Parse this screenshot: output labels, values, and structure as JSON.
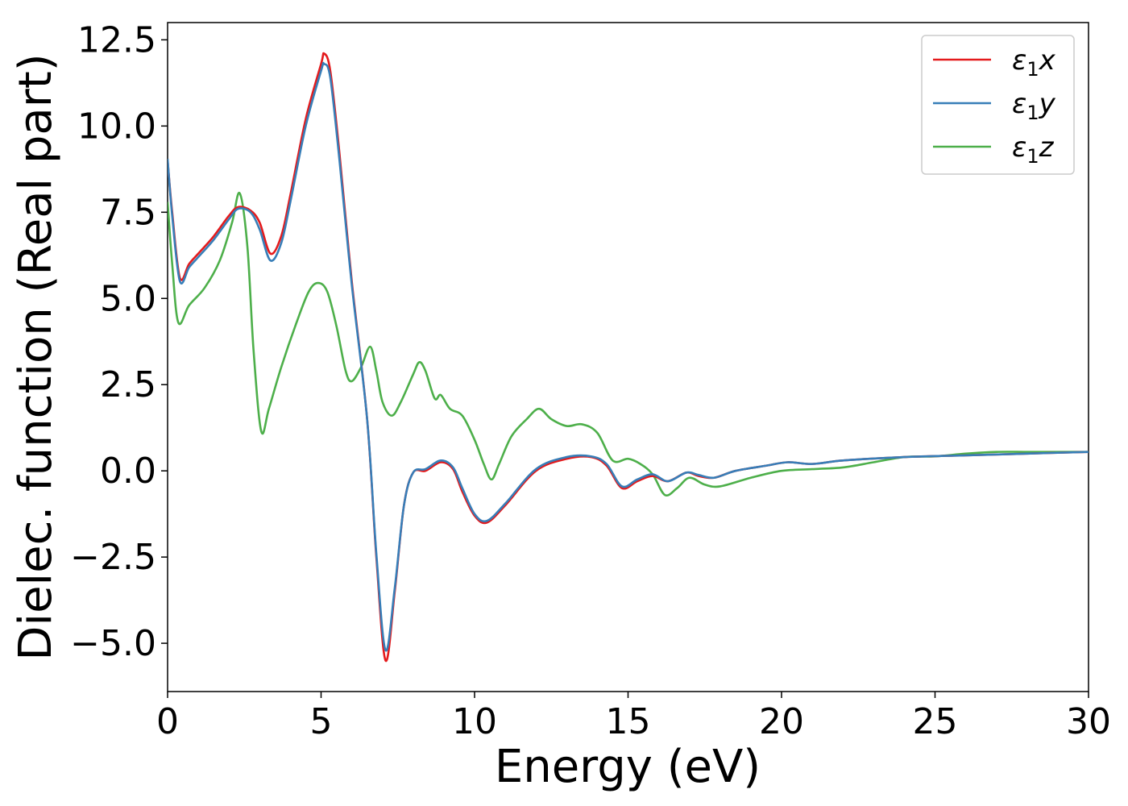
{
  "chart_data": {
    "type": "line",
    "title": "",
    "xlabel": "Energy (eV)",
    "ylabel": "Dielec. function (Real part)",
    "xlim": [
      0,
      30
    ],
    "ylim": [
      -6.4,
      13.0
    ],
    "xticks": [
      0,
      5,
      10,
      15,
      20,
      25,
      30
    ],
    "xtick_labels": [
      "0",
      "5",
      "10",
      "15",
      "20",
      "25",
      "30"
    ],
    "yticks": [
      -5.0,
      -2.5,
      0.0,
      2.5,
      5.0,
      7.5,
      10.0,
      12.5
    ],
    "ytick_labels": [
      "−5.0",
      "−2.5",
      "0.0",
      "2.5",
      "5.0",
      "7.5",
      "10.0",
      "12.5"
    ],
    "grid": false,
    "legend_position": "top-right",
    "series": [
      {
        "name": "ε₁x",
        "legend": {
          "base": "ε",
          "sub": "1",
          "suffix": "x"
        },
        "color": "#e41a1c",
        "points": [
          [
            0.0,
            9.0
          ],
          [
            0.15,
            7.5
          ],
          [
            0.4,
            5.6
          ],
          [
            0.7,
            6.0
          ],
          [
            1.0,
            6.3
          ],
          [
            1.5,
            6.8
          ],
          [
            2.0,
            7.4
          ],
          [
            2.3,
            7.65
          ],
          [
            2.7,
            7.55
          ],
          [
            3.0,
            7.2
          ],
          [
            3.35,
            6.3
          ],
          [
            3.7,
            6.8
          ],
          [
            4.0,
            8.0
          ],
          [
            4.5,
            10.2
          ],
          [
            5.0,
            11.8
          ],
          [
            5.1,
            12.1
          ],
          [
            5.3,
            11.6
          ],
          [
            5.6,
            9.2
          ],
          [
            6.0,
            5.5
          ],
          [
            6.5,
            1.5
          ],
          [
            6.8,
            -2.5
          ],
          [
            7.1,
            -5.5
          ],
          [
            7.4,
            -3.5
          ],
          [
            7.7,
            -1.0
          ],
          [
            8.0,
            -0.05
          ],
          [
            8.4,
            0.0
          ],
          [
            8.9,
            0.25
          ],
          [
            9.3,
            0.05
          ],
          [
            9.6,
            -0.6
          ],
          [
            10.0,
            -1.3
          ],
          [
            10.4,
            -1.5
          ],
          [
            11.0,
            -1.0
          ],
          [
            12.0,
            0.0
          ],
          [
            13.0,
            0.35
          ],
          [
            13.8,
            0.4
          ],
          [
            14.3,
            0.15
          ],
          [
            14.8,
            -0.5
          ],
          [
            15.3,
            -0.3
          ],
          [
            15.8,
            -0.15
          ],
          [
            16.3,
            -0.3
          ],
          [
            16.9,
            -0.05
          ],
          [
            17.3,
            -0.15
          ],
          [
            17.8,
            -0.2
          ],
          [
            18.5,
            0.0
          ],
          [
            19.5,
            0.15
          ],
          [
            20.2,
            0.25
          ],
          [
            21.0,
            0.2
          ],
          [
            22.0,
            0.3
          ],
          [
            24.0,
            0.4
          ],
          [
            26.0,
            0.45
          ],
          [
            28.0,
            0.5
          ],
          [
            30.0,
            0.55
          ]
        ]
      },
      {
        "name": "ε₁y",
        "legend": {
          "base": "ε",
          "sub": "1",
          "suffix": "y"
        },
        "color": "#377eb8",
        "points": [
          [
            0.0,
            9.05
          ],
          [
            0.15,
            7.4
          ],
          [
            0.4,
            5.5
          ],
          [
            0.7,
            5.9
          ],
          [
            1.0,
            6.2
          ],
          [
            1.5,
            6.7
          ],
          [
            2.0,
            7.3
          ],
          [
            2.3,
            7.6
          ],
          [
            2.7,
            7.5
          ],
          [
            3.0,
            7.0
          ],
          [
            3.35,
            6.1
          ],
          [
            3.7,
            6.6
          ],
          [
            4.0,
            7.8
          ],
          [
            4.5,
            10.0
          ],
          [
            5.0,
            11.6
          ],
          [
            5.1,
            11.8
          ],
          [
            5.3,
            11.4
          ],
          [
            5.6,
            9.0
          ],
          [
            6.0,
            5.4
          ],
          [
            6.5,
            1.5
          ],
          [
            6.8,
            -2.4
          ],
          [
            7.1,
            -5.2
          ],
          [
            7.4,
            -3.4
          ],
          [
            7.7,
            -1.0
          ],
          [
            8.0,
            -0.05
          ],
          [
            8.4,
            0.05
          ],
          [
            8.9,
            0.3
          ],
          [
            9.3,
            0.1
          ],
          [
            9.6,
            -0.5
          ],
          [
            10.0,
            -1.25
          ],
          [
            10.4,
            -1.45
          ],
          [
            11.0,
            -0.95
          ],
          [
            12.0,
            0.05
          ],
          [
            13.0,
            0.4
          ],
          [
            13.8,
            0.42
          ],
          [
            14.3,
            0.2
          ],
          [
            14.8,
            -0.45
          ],
          [
            15.3,
            -0.25
          ],
          [
            15.8,
            -0.1
          ],
          [
            16.3,
            -0.3
          ],
          [
            16.9,
            -0.05
          ],
          [
            17.3,
            -0.12
          ],
          [
            17.8,
            -0.2
          ],
          [
            18.5,
            0.0
          ],
          [
            19.5,
            0.15
          ],
          [
            20.2,
            0.25
          ],
          [
            21.0,
            0.2
          ],
          [
            22.0,
            0.3
          ],
          [
            24.0,
            0.4
          ],
          [
            26.0,
            0.45
          ],
          [
            28.0,
            0.5
          ],
          [
            30.0,
            0.55
          ]
        ]
      },
      {
        "name": "ε₁z",
        "legend": {
          "base": "ε",
          "sub": "1",
          "suffix": "z"
        },
        "color": "#4daf4a",
        "points": [
          [
            0.0,
            7.8
          ],
          [
            0.15,
            6.0
          ],
          [
            0.35,
            4.3
          ],
          [
            0.7,
            4.8
          ],
          [
            1.2,
            5.3
          ],
          [
            1.7,
            6.1
          ],
          [
            2.1,
            7.2
          ],
          [
            2.35,
            8.05
          ],
          [
            2.6,
            6.5
          ],
          [
            2.8,
            3.5
          ],
          [
            3.05,
            1.15
          ],
          [
            3.3,
            1.8
          ],
          [
            3.7,
            3.0
          ],
          [
            4.2,
            4.3
          ],
          [
            4.6,
            5.2
          ],
          [
            4.9,
            5.45
          ],
          [
            5.2,
            5.2
          ],
          [
            5.5,
            4.2
          ],
          [
            5.8,
            2.9
          ],
          [
            6.0,
            2.6
          ],
          [
            6.3,
            3.0
          ],
          [
            6.6,
            3.6
          ],
          [
            6.8,
            2.9
          ],
          [
            7.0,
            2.0
          ],
          [
            7.3,
            1.6
          ],
          [
            7.6,
            2.0
          ],
          [
            8.0,
            2.8
          ],
          [
            8.2,
            3.15
          ],
          [
            8.4,
            2.9
          ],
          [
            8.7,
            2.1
          ],
          [
            8.9,
            2.2
          ],
          [
            9.2,
            1.8
          ],
          [
            9.6,
            1.6
          ],
          [
            10.0,
            0.9
          ],
          [
            10.3,
            0.2
          ],
          [
            10.55,
            -0.25
          ],
          [
            10.8,
            0.2
          ],
          [
            11.2,
            1.0
          ],
          [
            11.7,
            1.5
          ],
          [
            12.1,
            1.8
          ],
          [
            12.5,
            1.5
          ],
          [
            13.0,
            1.3
          ],
          [
            13.5,
            1.35
          ],
          [
            14.0,
            1.1
          ],
          [
            14.5,
            0.3
          ],
          [
            15.0,
            0.35
          ],
          [
            15.4,
            0.2
          ],
          [
            15.8,
            -0.1
          ],
          [
            16.2,
            -0.7
          ],
          [
            16.6,
            -0.5
          ],
          [
            17.0,
            -0.2
          ],
          [
            17.5,
            -0.4
          ],
          [
            18.0,
            -0.45
          ],
          [
            19.0,
            -0.2
          ],
          [
            20.0,
            0.0
          ],
          [
            21.0,
            0.05
          ],
          [
            22.0,
            0.1
          ],
          [
            23.0,
            0.25
          ],
          [
            24.0,
            0.4
          ],
          [
            25.0,
            0.42
          ],
          [
            26.0,
            0.5
          ],
          [
            27.0,
            0.55
          ],
          [
            28.0,
            0.55
          ],
          [
            29.0,
            0.55
          ],
          [
            30.0,
            0.55
          ]
        ]
      }
    ]
  }
}
